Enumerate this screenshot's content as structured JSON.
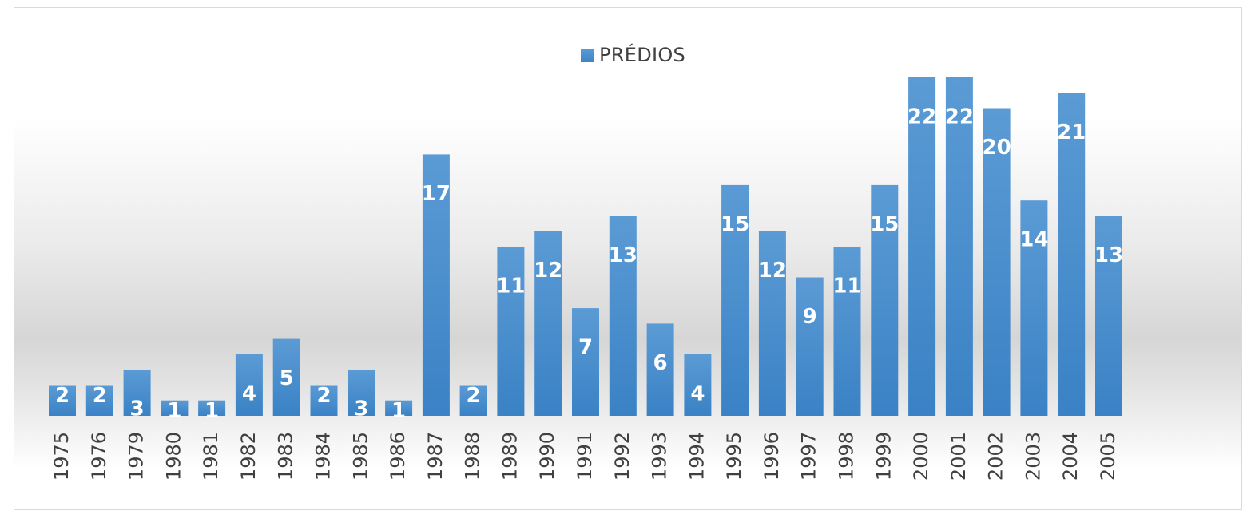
{
  "chart_data": {
    "type": "bar",
    "legend": {
      "position": "top-center",
      "entries": [
        "PRÉDIOS"
      ]
    },
    "series": [
      {
        "name": "PRÉDIOS",
        "color": "#5b9bd5",
        "values": [
          2,
          2,
          3,
          1,
          1,
          4,
          5,
          2,
          3,
          1,
          17,
          2,
          11,
          12,
          7,
          13,
          6,
          4,
          15,
          12,
          9,
          11,
          15,
          22,
          22,
          20,
          14,
          21,
          13
        ]
      }
    ],
    "categories": [
      "1975",
      "1976",
      "1979",
      "1980",
      "1981",
      "1982",
      "1983",
      "1984",
      "1985",
      "1986",
      "1987",
      "1988",
      "1989",
      "1990",
      "1991",
      "1992",
      "1993",
      "1994",
      "1995",
      "1996",
      "1997",
      "1998",
      "1999",
      "2000",
      "2001",
      "2002",
      "2003",
      "2004",
      "2005"
    ],
    "data_labels": true,
    "ylim": [
      0,
      22
    ],
    "grid": false,
    "colors": {
      "bar_top": "#5b9bd5",
      "bar_bottom": "#3d84c6",
      "label": "#ffffff",
      "tick": "#404040"
    }
  }
}
